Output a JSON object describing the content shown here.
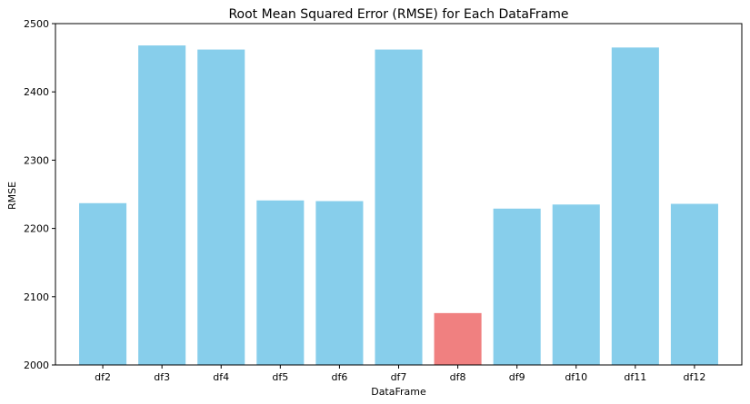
{
  "chart_data": {
    "type": "bar",
    "title": "Root Mean Squared Error (RMSE) for Each DataFrame",
    "xlabel": "DataFrame",
    "ylabel": "RMSE",
    "categories": [
      "df2",
      "df3",
      "df4",
      "df5",
      "df6",
      "df7",
      "df8",
      "df9",
      "df10",
      "df11",
      "df12"
    ],
    "values": [
      2237,
      2468,
      2462,
      2241,
      2240,
      2462,
      2076,
      2229,
      2235,
      2465,
      2236
    ],
    "highlight_index": 6,
    "ylim": [
      2000,
      2500
    ],
    "yticks": [
      2000,
      2100,
      2200,
      2300,
      2400,
      2500
    ],
    "grid": false,
    "legend": "none",
    "colors": {
      "bar": "#87ceeb",
      "highlight": "#f08080",
      "axis": "#000000"
    }
  }
}
